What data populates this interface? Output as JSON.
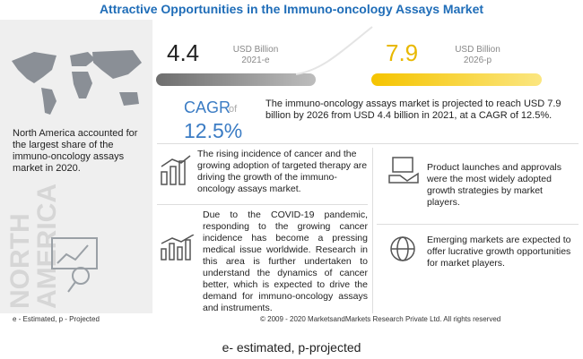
{
  "header": {
    "title": "Attractive Opportunities in the Immuno-oncology Assays Market"
  },
  "region": {
    "text": "North America accounted for the largest share of the immuno-oncology assays market in 2020.",
    "watermark_line1": "NORTH",
    "watermark_line2": "AMERICA"
  },
  "market": {
    "start_value": "4.4",
    "start_unit": "USD Billion",
    "start_year": "2021-e",
    "end_value": "7.9",
    "end_unit": "USD Billion",
    "end_year": "2026-p",
    "cagr_label": "CAGR",
    "cagr_of": "of",
    "cagr_value": "12.5%",
    "summary": "The immuno-oncology assays market is projected to reach USD 7.9 billion by 2026 from USD 4.4 billion in 2021, at a CAGR of 12.5%."
  },
  "points": [
    "The rising incidence of cancer and the growing adoption of targeted therapy are driving the growth of the immuno-oncology assays market.",
    "Product launches and approvals were the most widely adopted growth strategies by market players.",
    "Due to the COVID-19 pandemic, responding to the growing cancer incidence has become a pressing medical issue worldwide. Research in this area is further undertaken to understand the dynamics of cancer better, which is expected to drive the demand for immuno-oncology assays and instruments.",
    "Emerging markets are expected to offer lucrative growth opportunities for market players."
  ],
  "footer": {
    "legend": "e - Estimated, p - Projected",
    "copyright": "© 2009 - 2020 MarketsandMarkets Research Private Ltd. All rights reserved"
  },
  "caption": "e- estimated, p-projected"
}
